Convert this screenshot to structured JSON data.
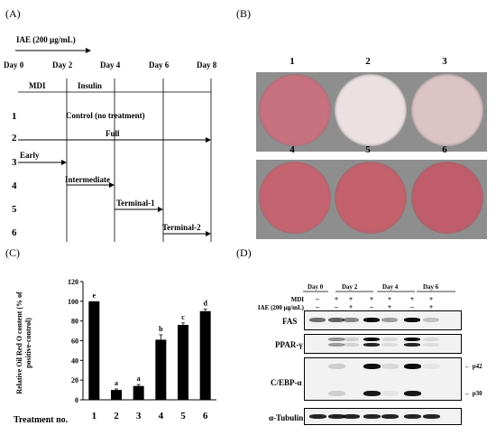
{
  "panels": {
    "A": "(A)",
    "B": "(B)",
    "C": "(C)",
    "D": "(D)"
  },
  "timeline": {
    "iae": "IAE (200 µg/mL)",
    "days": [
      "Day 0",
      "Day 2",
      "Day 4",
      "Day 6",
      "Day 8"
    ],
    "phases": [
      "MDI",
      "Insulin"
    ],
    "rows": [
      {
        "num": "1",
        "label": "Control (no treatment)"
      },
      {
        "num": "2",
        "label": "Full"
      },
      {
        "num": "3",
        "label": "Early"
      },
      {
        "num": "4",
        "label": "Intermediate"
      },
      {
        "num": "5",
        "label": "Terminal-1"
      },
      {
        "num": "6",
        "label": "Terminal-2"
      }
    ]
  },
  "dishes": {
    "labels": [
      "1",
      "2",
      "3",
      "4",
      "5",
      "6"
    ],
    "colors": [
      "#c8717f",
      "#ebe0e2",
      "#dcc3c6",
      "#c56471",
      "#c3616d",
      "#c05d6a"
    ]
  },
  "chart_data": {
    "type": "bar",
    "categories": [
      "1",
      "2",
      "3",
      "4",
      "5",
      "6"
    ],
    "values": [
      100,
      10,
      14,
      61,
      76,
      90
    ],
    "errors": [
      0,
      1,
      1.5,
      5,
      2,
      2
    ],
    "sig_letters": [
      "e",
      "a",
      "a",
      "b",
      "c",
      "d"
    ],
    "xlabel": "Treatment no.",
    "ylabel": "Relative Oil Red O content (% of positive-control)",
    "yticks": [
      "0",
      "20",
      "40",
      "60",
      "80",
      "100",
      "120"
    ],
    "ylim": [
      0,
      120
    ]
  },
  "blot": {
    "days": [
      "Day 0",
      "Day 2",
      "Day 4",
      "Day 6"
    ],
    "mdi_label": "MDI",
    "iae_label": "IAE (200 µg/mL)",
    "mdi_signs": [
      "–",
      "+",
      "+",
      "+",
      "+",
      "+",
      "+"
    ],
    "iae_signs": [
      "–",
      "–",
      "+",
      "–",
      "+",
      "–",
      "+"
    ],
    "proteins": [
      "FAS",
      "PPAR-γ",
      "C/EBP-α",
      "α-Tubulin"
    ],
    "markers": [
      "← p42",
      "← p30"
    ]
  }
}
